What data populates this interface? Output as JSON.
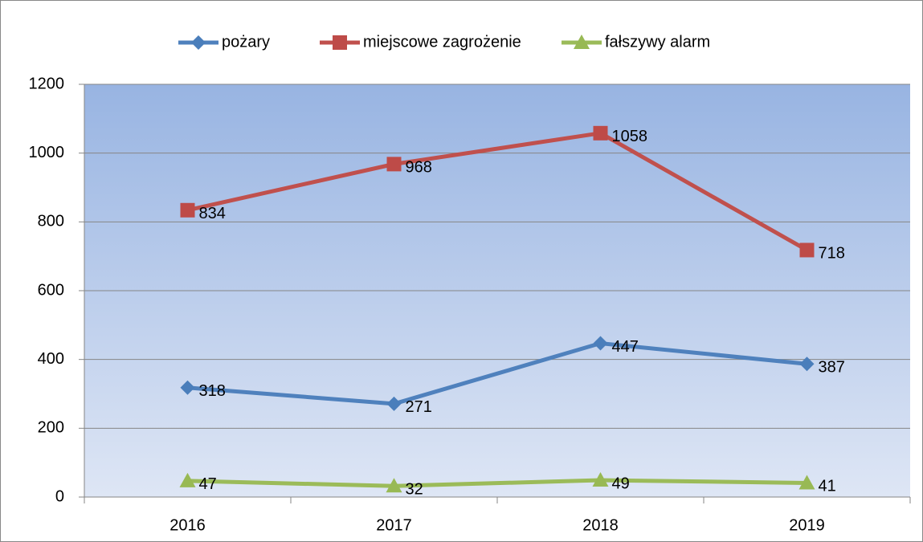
{
  "chart_data": {
    "type": "line",
    "categories": [
      "2016",
      "2017",
      "2018",
      "2019"
    ],
    "series": [
      {
        "name": "pożary",
        "color": "#4f81bd",
        "marker": "diamond",
        "values": [
          318,
          271,
          447,
          387
        ]
      },
      {
        "name": "miejscowe zagrożenie",
        "color": "#c0504d",
        "marker": "square",
        "values": [
          834,
          968,
          1058,
          718
        ]
      },
      {
        "name": "fałszywy alarm",
        "color": "#9bbb59",
        "marker": "triangle",
        "values": [
          47,
          32,
          49,
          41
        ]
      }
    ],
    "ylim": [
      0,
      1200
    ],
    "yticks": [
      0,
      200,
      400,
      600,
      800,
      1000,
      1200
    ],
    "grid": true,
    "legend": "top"
  }
}
